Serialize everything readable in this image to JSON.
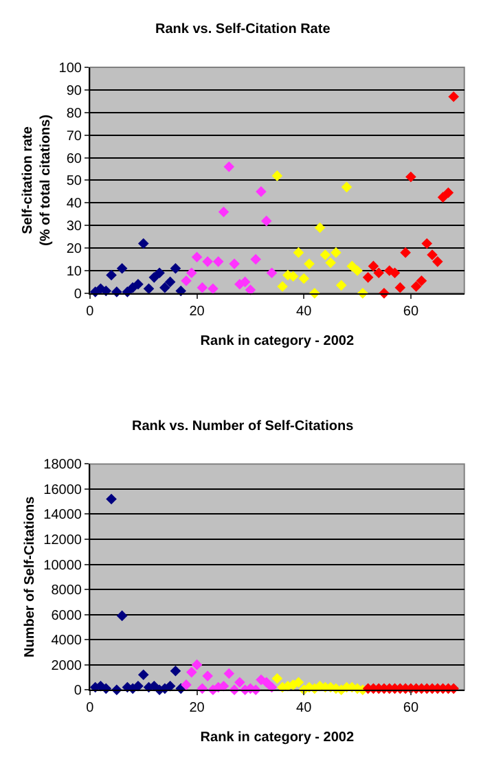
{
  "chart_data": [
    {
      "type": "scatter",
      "title": "Rank vs. Self-Citation Rate",
      "xlabel": "Rank in category - 2002",
      "ylabel": "Self-citation rate\n(% of total citations)",
      "xlim": [
        0,
        70
      ],
      "xticks": [
        0,
        20,
        40,
        60
      ],
      "ylim": [
        0,
        100
      ],
      "yticks": [
        0,
        10,
        20,
        30,
        40,
        50,
        60,
        70,
        80,
        90,
        100
      ],
      "grid": "y",
      "marker": "diamond",
      "series": [
        {
          "color": "#000080",
          "x": [
            1,
            2,
            3,
            4,
            5,
            6,
            7,
            8,
            9,
            10,
            11,
            12,
            13,
            14,
            15,
            16,
            17
          ],
          "values": [
            0.6,
            2,
            1,
            8,
            0.6,
            11,
            0.6,
            2.5,
            4,
            22,
            2,
            7,
            9,
            2.5,
            5,
            11,
            1
          ]
        },
        {
          "color": "#ff33ff",
          "x": [
            18,
            19,
            20,
            21,
            22,
            23,
            24,
            25,
            26,
            27,
            28,
            29,
            30,
            31,
            32,
            33,
            34
          ],
          "values": [
            5.5,
            9,
            16,
            2.5,
            14,
            2,
            14,
            36,
            56,
            13,
            4,
            5,
            1.5,
            15,
            45,
            32,
            9
          ]
        },
        {
          "color": "#ffff00",
          "x": [
            35,
            36,
            37,
            38,
            39,
            40,
            41,
            42,
            43,
            44,
            45,
            46,
            47,
            48,
            49,
            50,
            51
          ],
          "values": [
            52,
            3,
            8,
            7.5,
            18,
            6.5,
            13,
            0,
            29,
            17,
            13.5,
            18,
            3.5,
            47,
            12,
            10,
            0
          ]
        },
        {
          "color": "#ff0000",
          "x": [
            52,
            53,
            54,
            55,
            56,
            57,
            58,
            59,
            60,
            61,
            62,
            63,
            64,
            65,
            66,
            67,
            68
          ],
          "values": [
            7,
            12,
            9,
            0,
            10,
            9,
            2.5,
            18,
            51.5,
            3,
            5.5,
            22,
            17,
            14,
            42.5,
            44.5,
            87
          ]
        }
      ]
    },
    {
      "type": "scatter",
      "title": "Rank vs. Number of Self-Citations",
      "xlabel": "Rank in category - 2002",
      "ylabel": "Number of Self-Citations",
      "xlim": [
        0,
        70
      ],
      "xticks": [
        0,
        20,
        40,
        60
      ],
      "ylim": [
        0,
        18000
      ],
      "yticks": [
        0,
        2000,
        4000,
        6000,
        8000,
        10000,
        12000,
        14000,
        16000,
        18000
      ],
      "grid": "y",
      "marker": "diamond",
      "series": [
        {
          "color": "#000080",
          "x": [
            1,
            2,
            3,
            4,
            5,
            6,
            7,
            8,
            9,
            10,
            11,
            12,
            13,
            14,
            15,
            16,
            17
          ],
          "values": [
            200,
            300,
            100,
            15200,
            0,
            5900,
            200,
            100,
            300,
            1200,
            200,
            300,
            0,
            100,
            300,
            1500,
            100
          ]
        },
        {
          "color": "#ff33ff",
          "x": [
            18,
            19,
            20,
            21,
            22,
            23,
            24,
            25,
            26,
            27,
            28,
            29,
            30,
            31,
            32,
            33,
            34
          ],
          "values": [
            400,
            1400,
            2000,
            100,
            1100,
            0,
            200,
            300,
            1300,
            0,
            600,
            0,
            100,
            0,
            800,
            600,
            200
          ]
        },
        {
          "color": "#ffff00",
          "x": [
            35,
            36,
            37,
            38,
            39,
            40,
            41,
            42,
            43,
            44,
            45,
            46,
            47,
            48,
            49,
            50,
            51
          ],
          "values": [
            900,
            200,
            300,
            400,
            600,
            0,
            200,
            100,
            300,
            200,
            200,
            100,
            0,
            200,
            200,
            100,
            0
          ]
        },
        {
          "color": "#ff0000",
          "x": [
            52,
            53,
            54,
            55,
            56,
            57,
            58,
            59,
            60,
            61,
            62,
            63,
            64,
            65,
            66,
            67,
            68
          ],
          "values": [
            100,
            100,
            100,
            100,
            100,
            100,
            100,
            100,
            100,
            100,
            100,
            100,
            100,
            100,
            100,
            100,
            100
          ]
        }
      ]
    }
  ]
}
